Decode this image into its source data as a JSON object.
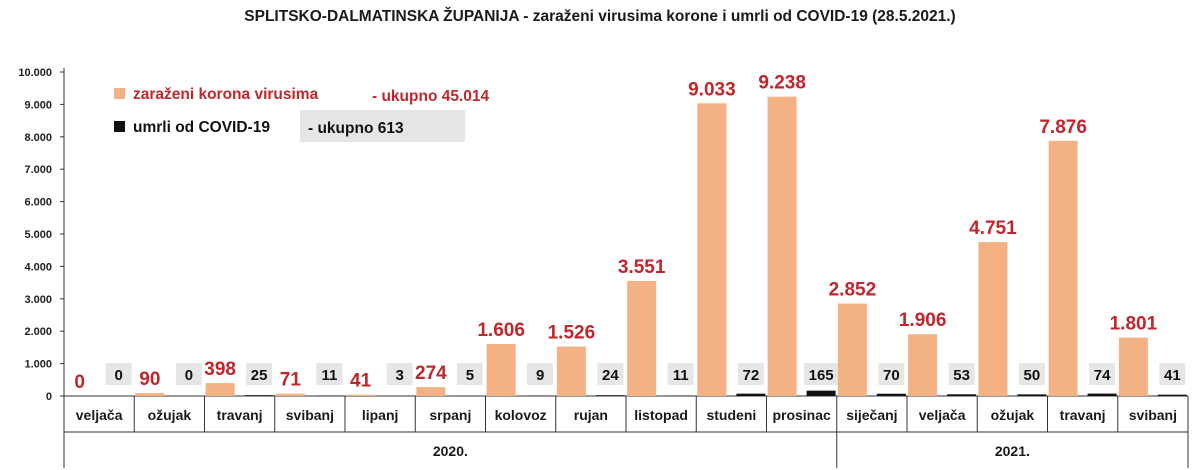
{
  "chart_data": {
    "type": "bar",
    "title": "SPLITSKO-DALMATINSKA ŽUPANIJA - zaraženi virusima korone i umrli od COVID-19 (28.5.2021.)",
    "categories": [
      "veljača",
      "ožujak",
      "travanj",
      "svibanj",
      "lipanj",
      "srpanj",
      "kolovoz",
      "rujan",
      "listopad",
      "studeni",
      "prosinac",
      "siječanj",
      "veljača",
      "ožujak",
      "travanj",
      "svibanj"
    ],
    "category_labels": [
      "veljača",
      "ožujak",
      "travanj",
      "svibanj",
      "lipanj",
      "srpanj",
      "kolovoz",
      "rujan",
      "listopad",
      "studeni",
      "prosinac",
      "siječanj",
      "veljača",
      "ožujak",
      "travanj",
      "svibanj"
    ],
    "years": [
      {
        "label": "2020.",
        "start_index": 0,
        "end_index": 10
      },
      {
        "label": "2021.",
        "start_index": 11,
        "end_index": 15
      }
    ],
    "series": [
      {
        "name": "zaraženi korona virusima",
        "color": "#f4b183",
        "values": [
          0,
          90,
          398,
          71,
          41,
          274,
          1606,
          1526,
          3551,
          9033,
          9238,
          2852,
          1906,
          4751,
          7876,
          1801
        ],
        "labels": [
          "0",
          "90",
          "398",
          "71",
          "41",
          "274",
          "1.606",
          "1.526",
          "3.551",
          "9.033",
          "9.238",
          "2.852",
          "1.906",
          "4.751",
          "7.876",
          "1.801"
        ]
      },
      {
        "name": "umrli od COVID-19",
        "color": "#111111",
        "values": [
          0,
          0,
          25,
          11,
          3,
          5,
          9,
          24,
          11,
          72,
          165,
          70,
          53,
          50,
          74,
          41
        ],
        "labels": [
          "0",
          "0",
          "25",
          "11",
          "3",
          "5",
          "9",
          "24",
          "11",
          "72",
          "165",
          "70",
          "53",
          "50",
          "74",
          "41"
        ]
      }
    ],
    "ylim": [
      0,
      10000
    ],
    "yticks": [
      0,
      1000,
      2000,
      3000,
      4000,
      5000,
      6000,
      7000,
      8000,
      9000,
      10000
    ],
    "ytick_labels": [
      "0",
      "1.000",
      "2.000",
      "3.000",
      "4.000",
      "5.000",
      "6.000",
      "7.000",
      "8.000",
      "9.000",
      "10.000"
    ],
    "legend": {
      "placement": "top-left",
      "items": [
        {
          "label": "zaraženi korona virusima",
          "total": "- ukupno 45.014"
        },
        {
          "label": "umrli od COVID-19",
          "total": "- ukupno 613"
        }
      ]
    },
    "grid": false
  }
}
